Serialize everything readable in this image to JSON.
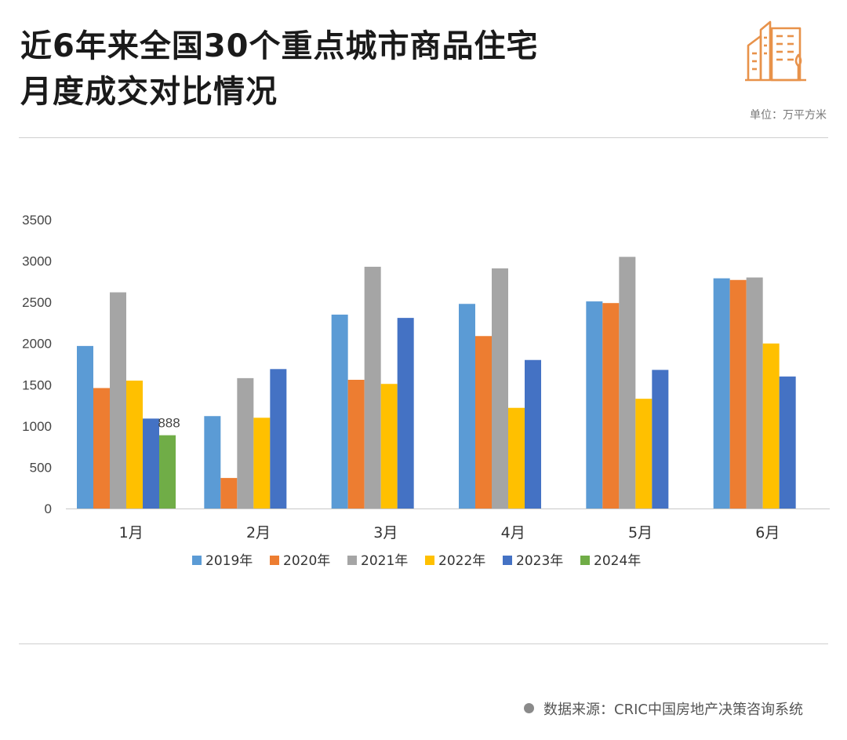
{
  "header": {
    "title_line1": "近6年来全国30个重点城市商品住宅",
    "title_line2": "月度成交对比情况",
    "unit": "单位：万平方米",
    "logo_icon": "buildings-icon",
    "accent_color": "#e8924a"
  },
  "footer": {
    "source": "数据来源：CRIC中国房地产决策咨询系统"
  },
  "chart_data": {
    "type": "bar",
    "categories": [
      "1月",
      "2月",
      "3月",
      "4月",
      "5月",
      "6月"
    ],
    "ylim": [
      0,
      3500
    ],
    "yticks": [
      0,
      500,
      1000,
      1500,
      2000,
      2500,
      3000,
      3500
    ],
    "grid": false,
    "legend": "bottom",
    "series": [
      {
        "name": "2019年",
        "color": "#5b9bd5",
        "values": [
          1970,
          1120,
          2350,
          2480,
          2510,
          2790
        ]
      },
      {
        "name": "2020年",
        "color": "#ed7d31",
        "values": [
          1460,
          370,
          1560,
          2090,
          2490,
          2770
        ]
      },
      {
        "name": "2021年",
        "color": "#a5a5a5",
        "values": [
          2620,
          1580,
          2930,
          2910,
          3050,
          2800
        ]
      },
      {
        "name": "2022年",
        "color": "#ffc000",
        "values": [
          1550,
          1100,
          1510,
          1220,
          1330,
          2000
        ]
      },
      {
        "name": "2023年",
        "color": "#4472c4",
        "values": [
          1090,
          1690,
          2310,
          1800,
          1680,
          1600
        ]
      },
      {
        "name": "2024年",
        "color": "#70ad47",
        "values": [
          888,
          null,
          null,
          null,
          null,
          null
        ]
      }
    ],
    "data_labels": [
      {
        "series": 5,
        "category": 0,
        "text": "888"
      }
    ]
  }
}
